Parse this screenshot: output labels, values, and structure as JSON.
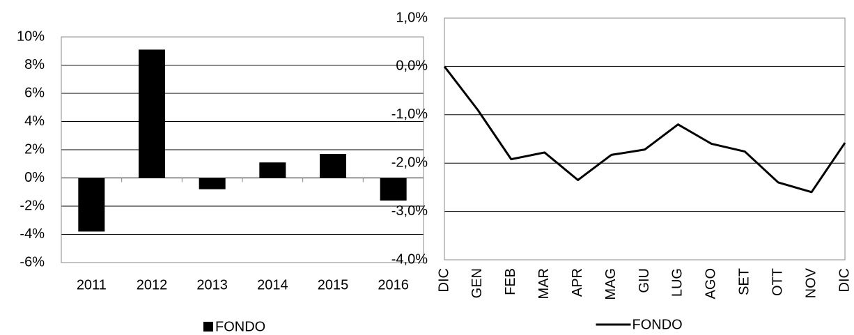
{
  "chart_data": [
    {
      "type": "bar",
      "categories": [
        "2011",
        "2012",
        "2013",
        "2014",
        "2015",
        "2016"
      ],
      "series": [
        {
          "name": "FONDO",
          "color": "#000000",
          "values": [
            -3.8,
            9.1,
            -0.8,
            1.1,
            1.7,
            -1.6
          ]
        }
      ],
      "ylim": [
        -6,
        10
      ],
      "yticks": [
        {
          "value": -6,
          "label": "-6%"
        },
        {
          "value": -4,
          "label": "-4%"
        },
        {
          "value": -2,
          "label": "-2%"
        },
        {
          "value": 0,
          "label": "0%"
        },
        {
          "value": 2,
          "label": "2%"
        },
        {
          "value": 4,
          "label": "4%"
        },
        {
          "value": 6,
          "label": "6%"
        },
        {
          "value": 8,
          "label": "8%"
        },
        {
          "value": 10,
          "label": "10%"
        }
      ],
      "grid": true,
      "legend": "bottom"
    },
    {
      "type": "line",
      "categories": [
        "DIC",
        "GEN",
        "FEB",
        "MAR",
        "APR",
        "MAG",
        "GIU",
        "LUG",
        "AGO",
        "SET",
        "OTT",
        "NOV",
        "DIC"
      ],
      "series": [
        {
          "name": "FONDO",
          "color": "#000000",
          "values": [
            0,
            -0.9,
            -1.92,
            -1.78,
            -2.35,
            -1.83,
            -1.72,
            -1.2,
            -1.6,
            -1.76,
            -2.4,
            -2.6,
            -1.58
          ]
        }
      ],
      "ylim": [
        -4,
        1
      ],
      "yticks": [
        {
          "value": -4,
          "label": "-4,0%"
        },
        {
          "value": -3,
          "label": "-3,0%"
        },
        {
          "value": -2,
          "label": "-2,0%"
        },
        {
          "value": -1,
          "label": "-1,0%"
        },
        {
          "value": 0,
          "label": "0,0%"
        },
        {
          "value": 1,
          "label": "1,0%"
        }
      ],
      "grid": true,
      "legend": "bottom"
    }
  ]
}
